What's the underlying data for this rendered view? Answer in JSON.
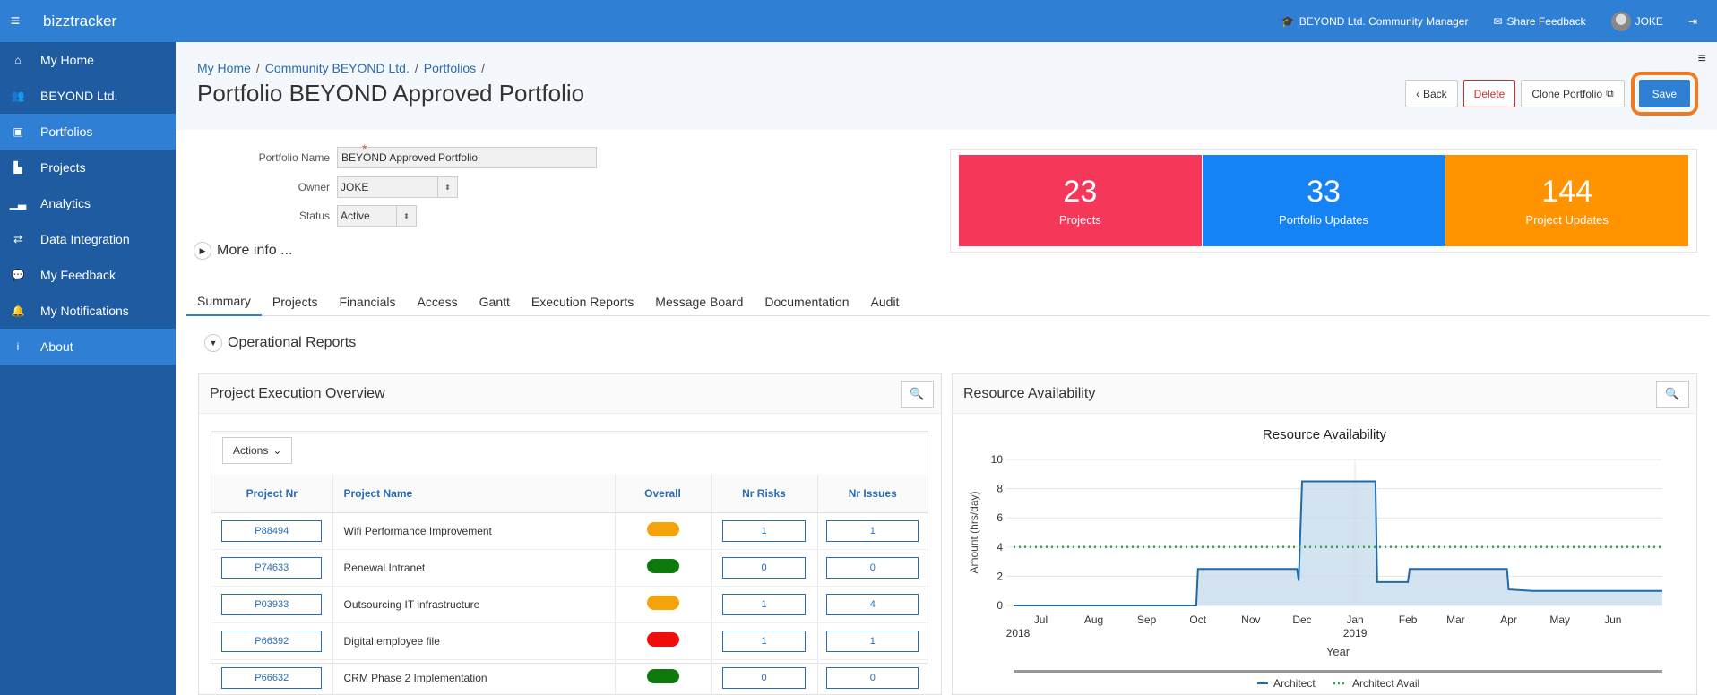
{
  "app": {
    "brand": "bizztracker"
  },
  "topbar": {
    "role": "BEYOND Ltd. Community Manager",
    "feedback": "Share Feedback",
    "user": "JOKE"
  },
  "sidebar": {
    "items": [
      {
        "label": "My Home",
        "icon": "home-icon"
      },
      {
        "label": "BEYOND Ltd.",
        "icon": "users-icon"
      },
      {
        "label": "Portfolios",
        "icon": "briefcase-icon"
      },
      {
        "label": "Projects",
        "icon": "bar-chart-icon"
      },
      {
        "label": "Analytics",
        "icon": "line-chart-icon"
      },
      {
        "label": "Data Integration",
        "icon": "exchange-icon"
      },
      {
        "label": "My Feedback",
        "icon": "comments-icon"
      },
      {
        "label": "My Notifications",
        "icon": "bell-icon"
      },
      {
        "label": "About",
        "icon": "info-icon"
      }
    ]
  },
  "breadcrumb": {
    "home": "My Home",
    "community": "Community BEYOND Ltd.",
    "portfolios": "Portfolios"
  },
  "page_title": "Portfolio BEYOND Approved Portfolio",
  "buttons": {
    "back": "Back",
    "delete": "Delete",
    "clone": "Clone Portfolio",
    "save": "Save"
  },
  "form": {
    "name_label": "Portfolio Name",
    "name_value": "BEYOND Approved Portfolio",
    "owner_label": "Owner",
    "owner_value": "JOKE",
    "status_label": "Status",
    "status_value": "Active",
    "more_info": "More info ..."
  },
  "stats": [
    {
      "value": "23",
      "label": "Projects",
      "color": "#f5375a"
    },
    {
      "value": "33",
      "label": "Portfolio Updates",
      "color": "#1683f5"
    },
    {
      "value": "144",
      "label": "Project Updates",
      "color": "#ff9300"
    }
  ],
  "tabs": [
    "Summary",
    "Projects",
    "Financials",
    "Access",
    "Gantt",
    "Execution Reports",
    "Message Board",
    "Documentation",
    "Audit"
  ],
  "operational_reports": "Operational Reports",
  "execution_panel": {
    "title": "Project Execution Overview",
    "actions": "Actions",
    "columns": [
      "Project Nr",
      "Project Name",
      "Overall",
      "Nr Risks",
      "Nr Issues"
    ],
    "rows": [
      {
        "nr": "P88494",
        "name": "Wifi Performance Improvement",
        "overall": "#f5a30a",
        "risks": "1",
        "issues": "1"
      },
      {
        "nr": "P74633",
        "name": "Renewal Intranet",
        "overall": "#0e7a0e",
        "risks": "0",
        "issues": "0"
      },
      {
        "nr": "P03933",
        "name": "Outsourcing IT infrastructure",
        "overall": "#f5a30a",
        "risks": "1",
        "issues": "4"
      },
      {
        "nr": "P66392",
        "name": "Digital employee file",
        "overall": "#f20d0d",
        "risks": "1",
        "issues": "1"
      },
      {
        "nr": "P66632",
        "name": "CRM Phase 2 Implementation",
        "overall": "#0e7a0e",
        "risks": "0",
        "issues": "0"
      }
    ]
  },
  "resource_panel": {
    "title": "Resource Availability"
  },
  "chart_data": {
    "type": "line",
    "title": "Resource Availability",
    "xlabel": "Year",
    "ylabel": "Amount (hrs/day)",
    "ylim": [
      0,
      10
    ],
    "yticks": [
      0,
      2,
      4,
      6,
      8,
      10
    ],
    "xticks": [
      "Jul",
      "Aug",
      "Sep",
      "Oct",
      "Nov",
      "Dec",
      "Jan",
      "Feb",
      "Mar",
      "Apr",
      "May",
      "Jun"
    ],
    "year_labels": [
      {
        "label": "2018",
        "under": "start"
      },
      {
        "label": "2019",
        "under": "Jan"
      }
    ],
    "grid": true,
    "legend": "bottom",
    "series": [
      {
        "name": "Architect",
        "style": "step-area",
        "color": "#1f6aa8",
        "points": [
          [
            "2018-06-15",
            0
          ],
          [
            "2018-09-30",
            0
          ],
          [
            "2018-10-01",
            2.5
          ],
          [
            "2018-11-28",
            2.5
          ],
          [
            "2018-11-29",
            1.7
          ],
          [
            "2018-12-01",
            8.5
          ],
          [
            "2019-01-13",
            8.5
          ],
          [
            "2019-01-14",
            1.6
          ],
          [
            "2019-02-01",
            1.6
          ],
          [
            "2019-02-02",
            2.5
          ],
          [
            "2019-03-31",
            2.5
          ],
          [
            "2019-04-01",
            1.1
          ],
          [
            "2019-04-15",
            1.0
          ],
          [
            "2019-06-30",
            1.0
          ]
        ]
      },
      {
        "name": "Architect Avail",
        "style": "dotted",
        "color": "#2ea84a",
        "points": [
          [
            "2018-06-15",
            4
          ],
          [
            "2019-06-30",
            4
          ]
        ]
      }
    ]
  }
}
